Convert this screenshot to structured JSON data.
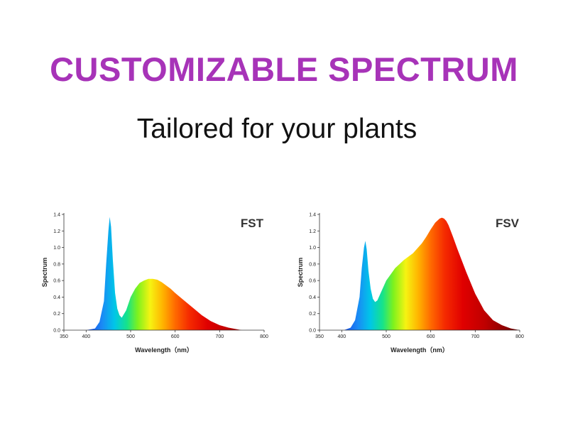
{
  "header": {
    "title": "CUSTOMIZABLE SPECTRUM",
    "subtitle": "Tailored for your plants"
  },
  "colors": {
    "title": "#a733b8",
    "subtitle": "#111111"
  },
  "chart_data": [
    {
      "type": "area",
      "title": "FST",
      "xlabel": "Wavelength（nm）",
      "ylabel": "Spectrum",
      "xlim": [
        350,
        800
      ],
      "ylim": [
        0,
        1.4
      ],
      "x_ticks": [
        "350",
        "400",
        "500",
        "600",
        "700",
        "800"
      ],
      "y_ticks": [
        "0.0",
        "0.2",
        "0.4",
        "0.6",
        "0.8",
        "1.0",
        "1.2",
        "1.4"
      ],
      "fill": "visible-spectrum gradient",
      "x": [
        400,
        420,
        430,
        440,
        445,
        450,
        453,
        456,
        460,
        465,
        470,
        475,
        480,
        490,
        500,
        510,
        520,
        530,
        540,
        550,
        560,
        570,
        580,
        590,
        600,
        620,
        640,
        660,
        680,
        700,
        720,
        740,
        750
      ],
      "y": [
        0,
        0.02,
        0.1,
        0.35,
        0.8,
        1.2,
        1.37,
        1.25,
        0.85,
        0.45,
        0.26,
        0.18,
        0.15,
        0.24,
        0.4,
        0.5,
        0.57,
        0.6,
        0.62,
        0.62,
        0.61,
        0.58,
        0.54,
        0.5,
        0.45,
        0.36,
        0.27,
        0.18,
        0.11,
        0.06,
        0.03,
        0.01,
        0
      ]
    },
    {
      "type": "area",
      "title": "FSV",
      "xlabel": "Wavelength（nm）",
      "ylabel": "Spectrum",
      "xlim": [
        350,
        800
      ],
      "ylim": [
        0,
        1.4
      ],
      "x_ticks": [
        "350",
        "400",
        "500",
        "600",
        "700",
        "800"
      ],
      "y_ticks": [
        "0.0",
        "0.2",
        "0.4",
        "0.6",
        "0.8",
        "1.0",
        "1.2",
        "1.4"
      ],
      "fill": "visible-spectrum gradient",
      "x": [
        405,
        420,
        430,
        440,
        445,
        450,
        453,
        456,
        460,
        465,
        470,
        475,
        480,
        490,
        500,
        520,
        540,
        560,
        570,
        580,
        590,
        600,
        610,
        620,
        625,
        630,
        635,
        640,
        650,
        660,
        680,
        700,
        720,
        740,
        760,
        780,
        800
      ],
      "y": [
        0,
        0.03,
        0.12,
        0.4,
        0.75,
        1.0,
        1.08,
        0.98,
        0.72,
        0.5,
        0.38,
        0.34,
        0.36,
        0.48,
        0.6,
        0.75,
        0.85,
        0.93,
        0.99,
        1.05,
        1.13,
        1.22,
        1.3,
        1.35,
        1.36,
        1.35,
        1.32,
        1.27,
        1.13,
        0.98,
        0.7,
        0.44,
        0.24,
        0.12,
        0.06,
        0.02,
        0
      ]
    }
  ]
}
